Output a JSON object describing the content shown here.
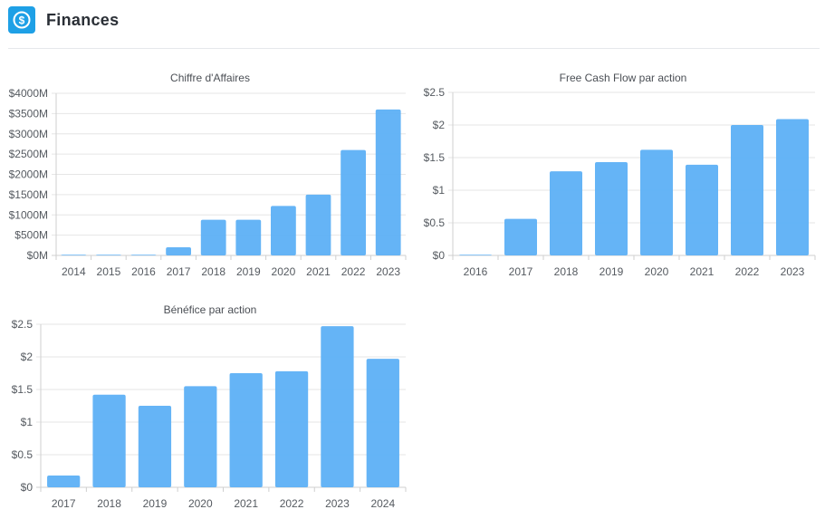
{
  "header": {
    "title": "Finances",
    "icon": "dollar-circle-icon",
    "icon_color": "#1ea0e6"
  },
  "bar_color": "#5db0f5",
  "chart_data": [
    {
      "type": "bar",
      "title": "Chiffre d'Affaires",
      "categories": [
        "2014",
        "2015",
        "2016",
        "2017",
        "2018",
        "2019",
        "2020",
        "2021",
        "2022",
        "2023"
      ],
      "values": [
        5,
        5,
        10,
        200,
        880,
        880,
        1220,
        1500,
        2600,
        3600
      ],
      "ylim": [
        0,
        4000
      ],
      "yticks": [
        "$0M",
        "$500M",
        "$1000M",
        "$1500M",
        "$2000M",
        "$2500M",
        "$3000M",
        "$3500M",
        "$4000M"
      ],
      "grid": true
    },
    {
      "type": "bar",
      "title": "Free Cash Flow par action",
      "categories": [
        "2016",
        "2017",
        "2018",
        "2019",
        "2020",
        "2021",
        "2022",
        "2023"
      ],
      "values": [
        0.01,
        0.56,
        1.29,
        1.43,
        1.62,
        1.39,
        2.0,
        2.09
      ],
      "ylim": [
        0,
        2.5
      ],
      "yticks": [
        "$0",
        "$0.5",
        "$1",
        "$1.5",
        "$2",
        "$2.5"
      ],
      "grid": true
    },
    {
      "type": "bar",
      "title": "Bénéfice par action",
      "categories": [
        "2017",
        "2018",
        "2019",
        "2020",
        "2021",
        "2022",
        "2023",
        "2024"
      ],
      "values": [
        0.18,
        1.42,
        1.25,
        1.55,
        1.75,
        1.78,
        2.47,
        1.97
      ],
      "ylim": [
        0,
        2.5
      ],
      "yticks": [
        "$0",
        "$0.5",
        "$1",
        "$1.5",
        "$2",
        "$2.5"
      ],
      "grid": true
    }
  ]
}
